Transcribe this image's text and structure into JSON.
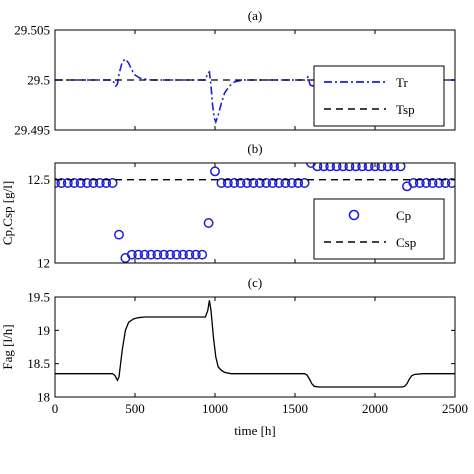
{
  "chart_data": [
    {
      "type": "line",
      "title": "(a)",
      "xlabel": "",
      "ylabel": "",
      "xlim": [
        0,
        2500
      ],
      "ylim": [
        29.495,
        29.505
      ],
      "xticks": [
        0,
        500,
        1000,
        1500,
        2000,
        2500
      ],
      "xtick_labels": [
        "",
        "",
        "",
        "",
        "",
        ""
      ],
      "yticks": [
        29.495,
        29.5,
        29.505
      ],
      "ytick_labels": [
        "29.495",
        "29.5",
        "29.505"
      ],
      "grid": false,
      "legend_position": "bottom-right",
      "series": [
        {
          "name": "Tr",
          "color": "#1f1fd6",
          "style": "dashdot",
          "points": [
            [
              0,
              29.5
            ],
            [
              360,
              29.5
            ],
            [
              370,
              29.4997
            ],
            [
              380,
              29.4994
            ],
            [
              390,
              29.4996
            ],
            [
              400,
              29.5006
            ],
            [
              420,
              29.5018
            ],
            [
              440,
              29.5021
            ],
            [
              460,
              29.5017
            ],
            [
              480,
              29.501
            ],
            [
              500,
              29.5005
            ],
            [
              530,
              29.5002
            ],
            [
              560,
              29.5001
            ],
            [
              600,
              29.5
            ],
            [
              940,
              29.5
            ],
            [
              955,
              29.5007
            ],
            [
              965,
              29.5008
            ],
            [
              975,
              29.4994
            ],
            [
              985,
              29.4975
            ],
            [
              995,
              29.4962
            ],
            [
              1005,
              29.4958
            ],
            [
              1020,
              29.4965
            ],
            [
              1040,
              29.4977
            ],
            [
              1060,
              29.4987
            ],
            [
              1090,
              29.4994
            ],
            [
              1120,
              29.4998
            ],
            [
              1170,
              29.5
            ],
            [
              1560,
              29.5
            ],
            [
              1580,
              29.5003
            ],
            [
              1595,
              29.4995
            ],
            [
              1610,
              29.4994
            ],
            [
              1640,
              29.4997
            ],
            [
              1680,
              29.4999
            ],
            [
              1720,
              29.5
            ],
            [
              2170,
              29.5
            ],
            [
              2185,
              29.4998
            ],
            [
              2200,
              29.4996
            ],
            [
              2230,
              29.4998
            ],
            [
              2270,
              29.5
            ],
            [
              2500,
              29.5
            ]
          ]
        },
        {
          "name": "Tsp",
          "color": "#000000",
          "style": "dashed",
          "points": [
            [
              0,
              29.5
            ],
            [
              2500,
              29.5
            ]
          ]
        }
      ]
    },
    {
      "type": "scatter",
      "title": "(b)",
      "xlabel": "",
      "ylabel": "Cp,Csp [g/l]",
      "xlim": [
        0,
        2500
      ],
      "ylim": [
        12,
        12.6
      ],
      "xticks": [
        0,
        500,
        1000,
        1500,
        2000,
        2500
      ],
      "xtick_labels": [
        "",
        "",
        "",
        "",
        "",
        ""
      ],
      "yticks": [
        12,
        12.5
      ],
      "ytick_labels": [
        "12",
        "12.5"
      ],
      "grid": false,
      "legend_position": "bottom-right",
      "series": [
        {
          "name": "Cp",
          "color": "#1f1fd6",
          "style": "circle",
          "points": [
            [
              0,
              12.48
            ],
            [
              40,
              12.48
            ],
            [
              80,
              12.48
            ],
            [
              120,
              12.48
            ],
            [
              160,
              12.48
            ],
            [
              200,
              12.48
            ],
            [
              240,
              12.48
            ],
            [
              280,
              12.48
            ],
            [
              320,
              12.48
            ],
            [
              360,
              12.48
            ],
            [
              400,
              12.17
            ],
            [
              440,
              12.03
            ],
            [
              480,
              12.05
            ],
            [
              520,
              12.05
            ],
            [
              560,
              12.05
            ],
            [
              600,
              12.05
            ],
            [
              640,
              12.05
            ],
            [
              680,
              12.05
            ],
            [
              720,
              12.05
            ],
            [
              760,
              12.05
            ],
            [
              800,
              12.05
            ],
            [
              840,
              12.05
            ],
            [
              880,
              12.05
            ],
            [
              920,
              12.05
            ],
            [
              960,
              12.24
            ],
            [
              1000,
              12.55
            ],
            [
              1040,
              12.48
            ],
            [
              1080,
              12.48
            ],
            [
              1120,
              12.48
            ],
            [
              1160,
              12.48
            ],
            [
              1200,
              12.48
            ],
            [
              1240,
              12.48
            ],
            [
              1280,
              12.48
            ],
            [
              1320,
              12.48
            ],
            [
              1360,
              12.48
            ],
            [
              1400,
              12.48
            ],
            [
              1440,
              12.48
            ],
            [
              1480,
              12.48
            ],
            [
              1520,
              12.48
            ],
            [
              1560,
              12.48
            ],
            [
              1600,
              12.6
            ],
            [
              1640,
              12.58
            ],
            [
              1680,
              12.58
            ],
            [
              1720,
              12.58
            ],
            [
              1760,
              12.58
            ],
            [
              1800,
              12.58
            ],
            [
              1840,
              12.58
            ],
            [
              1880,
              12.58
            ],
            [
              1920,
              12.58
            ],
            [
              1960,
              12.58
            ],
            [
              2000,
              12.58
            ],
            [
              2040,
              12.58
            ],
            [
              2080,
              12.58
            ],
            [
              2120,
              12.58
            ],
            [
              2160,
              12.58
            ],
            [
              2200,
              12.46
            ],
            [
              2240,
              12.48
            ],
            [
              2280,
              12.48
            ],
            [
              2320,
              12.48
            ],
            [
              2360,
              12.48
            ],
            [
              2400,
              12.48
            ],
            [
              2440,
              12.48
            ],
            [
              2480,
              12.48
            ]
          ]
        },
        {
          "name": "Csp",
          "color": "#000000",
          "style": "dashed",
          "points": [
            [
              0,
              12.5
            ],
            [
              2500,
              12.5
            ]
          ]
        }
      ]
    },
    {
      "type": "line",
      "title": "(c)",
      "xlabel": "time [h]",
      "ylabel": "Fag [l/h]",
      "xlim": [
        0,
        2500
      ],
      "ylim": [
        18,
        19.5
      ],
      "xticks": [
        0,
        500,
        1000,
        1500,
        2000,
        2500
      ],
      "xtick_labels": [
        "0",
        "500",
        "1000",
        "1500",
        "2000",
        "2500"
      ],
      "yticks": [
        18,
        18.5,
        19,
        19.5
      ],
      "ytick_labels": [
        "18",
        "18.5",
        "19",
        "19.5"
      ],
      "grid": false,
      "legend_position": "none",
      "series": [
        {
          "name": "",
          "color": "#000000",
          "style": "solid",
          "points": [
            [
              0,
              18.35
            ],
            [
              360,
              18.35
            ],
            [
              375,
              18.32
            ],
            [
              390,
              18.25
            ],
            [
              400,
              18.3
            ],
            [
              420,
              18.7
            ],
            [
              440,
              19.0
            ],
            [
              460,
              19.12
            ],
            [
              490,
              19.17
            ],
            [
              520,
              19.19
            ],
            [
              560,
              19.2
            ],
            [
              940,
              19.2
            ],
            [
              955,
              19.3
            ],
            [
              965,
              19.45
            ],
            [
              975,
              19.3
            ],
            [
              990,
              18.9
            ],
            [
              1005,
              18.6
            ],
            [
              1020,
              18.45
            ],
            [
              1040,
              18.4
            ],
            [
              1060,
              18.37
            ],
            [
              1100,
              18.35
            ],
            [
              1560,
              18.35
            ],
            [
              1575,
              18.33
            ],
            [
              1590,
              18.27
            ],
            [
              1605,
              18.2
            ],
            [
              1620,
              18.16
            ],
            [
              1650,
              18.15
            ],
            [
              2170,
              18.15
            ],
            [
              2185,
              18.16
            ],
            [
              2200,
              18.2
            ],
            [
              2215,
              18.27
            ],
            [
              2230,
              18.32
            ],
            [
              2250,
              18.34
            ],
            [
              2300,
              18.35
            ],
            [
              2500,
              18.35
            ]
          ]
        }
      ]
    }
  ]
}
